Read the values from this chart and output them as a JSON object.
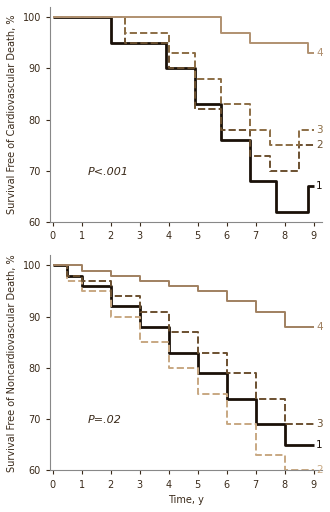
{
  "top_panel": {
    "ylabel": "Survival Free of Cardiovascular Death, %",
    "ylim": [
      60,
      102
    ],
    "yticks": [
      60,
      70,
      80,
      90,
      100
    ],
    "pvalue": "P<.001",
    "curves": [
      {
        "label": "1",
        "color": "#1a1008",
        "linestyle": "solid",
        "linewidth": 2.0,
        "x": [
          0,
          2.0,
          4.0,
          5.0,
          6.0,
          7.0,
          8.0,
          9.0
        ],
        "y": [
          100,
          100,
          90,
          83,
          75,
          68,
          63,
          67
        ]
      },
      {
        "label": "2",
        "color": "#6b5030",
        "linestyle": "dashed",
        "linewidth": 1.4,
        "x": [
          0,
          2.5,
          4.0,
          5.0,
          6.0,
          7.0,
          8.0,
          9.0
        ],
        "y": [
          100,
          95,
          90,
          82,
          78,
          73,
          70,
          76
        ]
      },
      {
        "label": "3",
        "color": "#8c6e45",
        "linestyle": "dashed",
        "linewidth": 1.4,
        "x": [
          0,
          2.5,
          4.0,
          5.0,
          6.0,
          7.0,
          8.0,
          9.0
        ],
        "y": [
          100,
          97,
          93,
          87,
          82,
          78,
          75,
          78
        ]
      },
      {
        "label": "4",
        "color": "#b09070",
        "linestyle": "solid",
        "linewidth": 1.4,
        "x": [
          0,
          6.0,
          7.0,
          8.0,
          9.0
        ],
        "y": [
          100,
          100,
          97,
          95,
          93
        ]
      }
    ]
  },
  "bottom_panel": {
    "ylabel": "Survival Free of Noncardiovascular Death, %",
    "xlabel": "Time, y",
    "ylim": [
      60,
      102
    ],
    "yticks": [
      60,
      70,
      80,
      90,
      100
    ],
    "pvalue": "P=.02",
    "curves": [
      {
        "label": "1",
        "color": "#1a1008",
        "linestyle": "solid",
        "linewidth": 2.0,
        "x": [
          0,
          0.5,
          1.0,
          2.0,
          3.0,
          4.0,
          5.0,
          6.0,
          7.0,
          8.0,
          9.0
        ],
        "y": [
          100,
          98,
          96,
          93,
          90,
          86,
          82,
          78,
          73,
          68,
          65
        ]
      },
      {
        "label": "2",
        "color": "#c8a882",
        "linestyle": "dashed",
        "linewidth": 1.4,
        "x": [
          0,
          0.5,
          1.0,
          2.0,
          3.0,
          4.0,
          5.0,
          6.0,
          7.0,
          8.0,
          9.0
        ],
        "y": [
          100,
          97,
          95,
          91,
          87,
          83,
          79,
          74,
          69,
          63,
          60
        ]
      },
      {
        "label": "3",
        "color": "#6b5030",
        "linestyle": "dashed",
        "linewidth": 1.4,
        "x": [
          0,
          0.5,
          1.0,
          2.0,
          3.0,
          4.0,
          5.0,
          6.0,
          7.0,
          8.0,
          9.0
        ],
        "y": [
          100,
          99,
          97,
          94,
          91,
          88,
          85,
          81,
          77,
          73,
          69
        ]
      },
      {
        "label": "4",
        "color": "#a08060",
        "linestyle": "solid",
        "linewidth": 1.4,
        "x": [
          0,
          1.0,
          2.0,
          3.0,
          4.0,
          5.0,
          6.0,
          7.0,
          8.0,
          9.0
        ],
        "y": [
          100,
          100,
          99,
          97,
          96,
          94,
          92,
          90,
          88,
          84
        ]
      }
    ]
  },
  "xlim": [
    -0.1,
    9.3
  ],
  "xticks": [
    0,
    1,
    2,
    3,
    4,
    5,
    6,
    7,
    8,
    9
  ],
  "background_color": "#ffffff",
  "label_fontsize": 7.0,
  "tick_fontsize": 7.0,
  "pvalue_fontsize": 8.0,
  "curve_label_fontsize": 7.5,
  "text_color": "#3a2a1a",
  "spine_color": "#888888"
}
